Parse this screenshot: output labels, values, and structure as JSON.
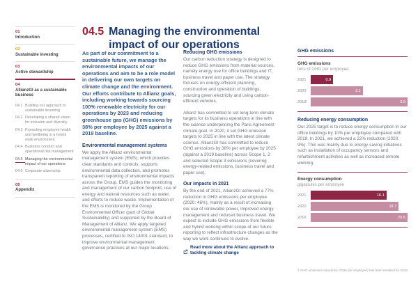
{
  "header": {
    "number": "04.5",
    "title": "Managing the environmental impact of our operations"
  },
  "sidebar": {
    "sections": [
      {
        "num": "01",
        "title": "Introduction"
      },
      {
        "num": "02",
        "title": "Sustainable investing"
      },
      {
        "num": "03",
        "title": "Active stewardship"
      },
      {
        "num": "04",
        "title": "AllianzGI as a sustainable business"
      },
      {
        "num": "05",
        "title": "Appendix"
      }
    ],
    "sub_items": [
      {
        "num": "04.1",
        "label": "Building our approach to sustainable investing"
      },
      {
        "num": "04.2",
        "label": "Developing a shared vision for inclusion and diversity"
      },
      {
        "num": "04.3",
        "label": "Promoting employee health and wellbeing in a hybrid work environment"
      },
      {
        "num": "04.4",
        "label": "Business conduct and operational risk management"
      },
      {
        "num": "04.5",
        "label": "Managing the environmental impact of our operations"
      },
      {
        "num": "04.6",
        "label": "Corporate citizenship"
      }
    ]
  },
  "columns": {
    "intro": "As part of our commitment to a sustainable future, we manage the environmental impacts of our operations and aim to be a role model in delivering our own targets on climate change and the environment. Our efforts contribute to Allianz goals, including working towards sourcing 100% renewable electricity for our operations by 2023 and reducing greenhouse gas (GHG) emissions by 38% per employee by 2025 against a 2019 baseline.",
    "ems": {
      "heading": "Environmental management systems",
      "body": "We apply the Allianz environmental management system (EMS), which provides clear standards and controls, supports environmental data collection, and promotes transparent reporting of environmental impacts across the Group. EMS guides the monitoring and management of our carbon footprint, use of energy and natural resources such as water, and efforts to reduce waste. Implementation of the EMS is monitored by the Group Environmental Officer (part of Global Sustainability) and supported by the Board of Management of Allianz. We apply targeted environmental management system (EMS) processes, certified to ISO 14001 standard, to improve environmental management governance practices at our major locations."
    },
    "ghg": {
      "heading": "Reducing GHG emissions",
      "p1": "Our carbon reduction strategy is designed to reduce GHG emissions from material sources, namely energy use for office buildings and IT, business travel and paper use. The strategy focuses on energy-efficient planning, construction and operation of buildings, sourcing green electricity and using carbon-efficient vehicles.",
      "p2": "Allianz has committed to set long-term climate targets for its business operations in line with the science underpinning the Paris Agreement climate goal. In 2020, it set GHG emission targets to 2025 in line with the latest climate science. AllianzGI has committed to reduce GHG emissions by 38% per employee by 2025 (against a 2019 baseline) across Scope 1, 2 and selected Scope 3 emissions (covering energy-related emissions, business travel and paper use)."
    },
    "impacts": {
      "heading": "Our impacts in 2021",
      "body": "By the end of 2021, AllianzGI achieved a 77% reduction in GHG emissions per employee (2020: 46%), mainly as a result of increasing our use of renewable power, improved energy management and reduced business travel. We expect to include GHG emissions from flexible and hybrid working within scope of our future reporting to reflect infrastructure changes as the way we work continues to evolve.",
      "link_label": "Read more about the Allianz approach to tackling climate change"
    },
    "ghg_section_heading": "GHG emissions",
    "energy": {
      "heading": "Reducing energy consumption",
      "body": "Our 2025 target is to reduce energy consumption in our office buildings by 10% per employee compared with 2019. In 2021, we achieved a 22% reduction (2020: 9%). This was mainly due to energy-saving initiatives such as installation of occupancy sensors and refurbishment activities as well as increased remote working."
    }
  },
  "footnote": "1 GHG emissions data (tons CO2e per employee) has been restated for 2019",
  "chart_data": [
    {
      "type": "bar",
      "orientation": "horizontal",
      "title": "GHG emissions",
      "subtitle": "tons of GHG per employee",
      "categories": [
        "2021",
        "2020",
        "2019¹"
      ],
      "values": [
        0.9,
        2.1,
        3.9
      ],
      "value_labels": [
        "0.9",
        "2.1",
        "3.9"
      ],
      "xlim": [
        0,
        3.9
      ],
      "legend": "none",
      "grid": "off"
    },
    {
      "type": "bar",
      "orientation": "horizontal",
      "title": "Energy consumption",
      "subtitle": "gigajoules per employee",
      "categories": [
        "2021",
        "2020",
        "2019"
      ],
      "values": [
        16.1,
        18.7,
        20.6
      ],
      "value_labels": [
        "16.1",
        "18.7",
        "20.6"
      ],
      "xlim": [
        0,
        20.6
      ],
      "legend": "none",
      "grid": "off"
    }
  ],
  "colors": {
    "brand_blue": "#1d3a73",
    "berry_dark": "#8e2746",
    "berry_light": "#c48da2",
    "title_red": "#9e1b32",
    "toc_gold": "#d6a021",
    "body_gray": "#6d7278"
  }
}
